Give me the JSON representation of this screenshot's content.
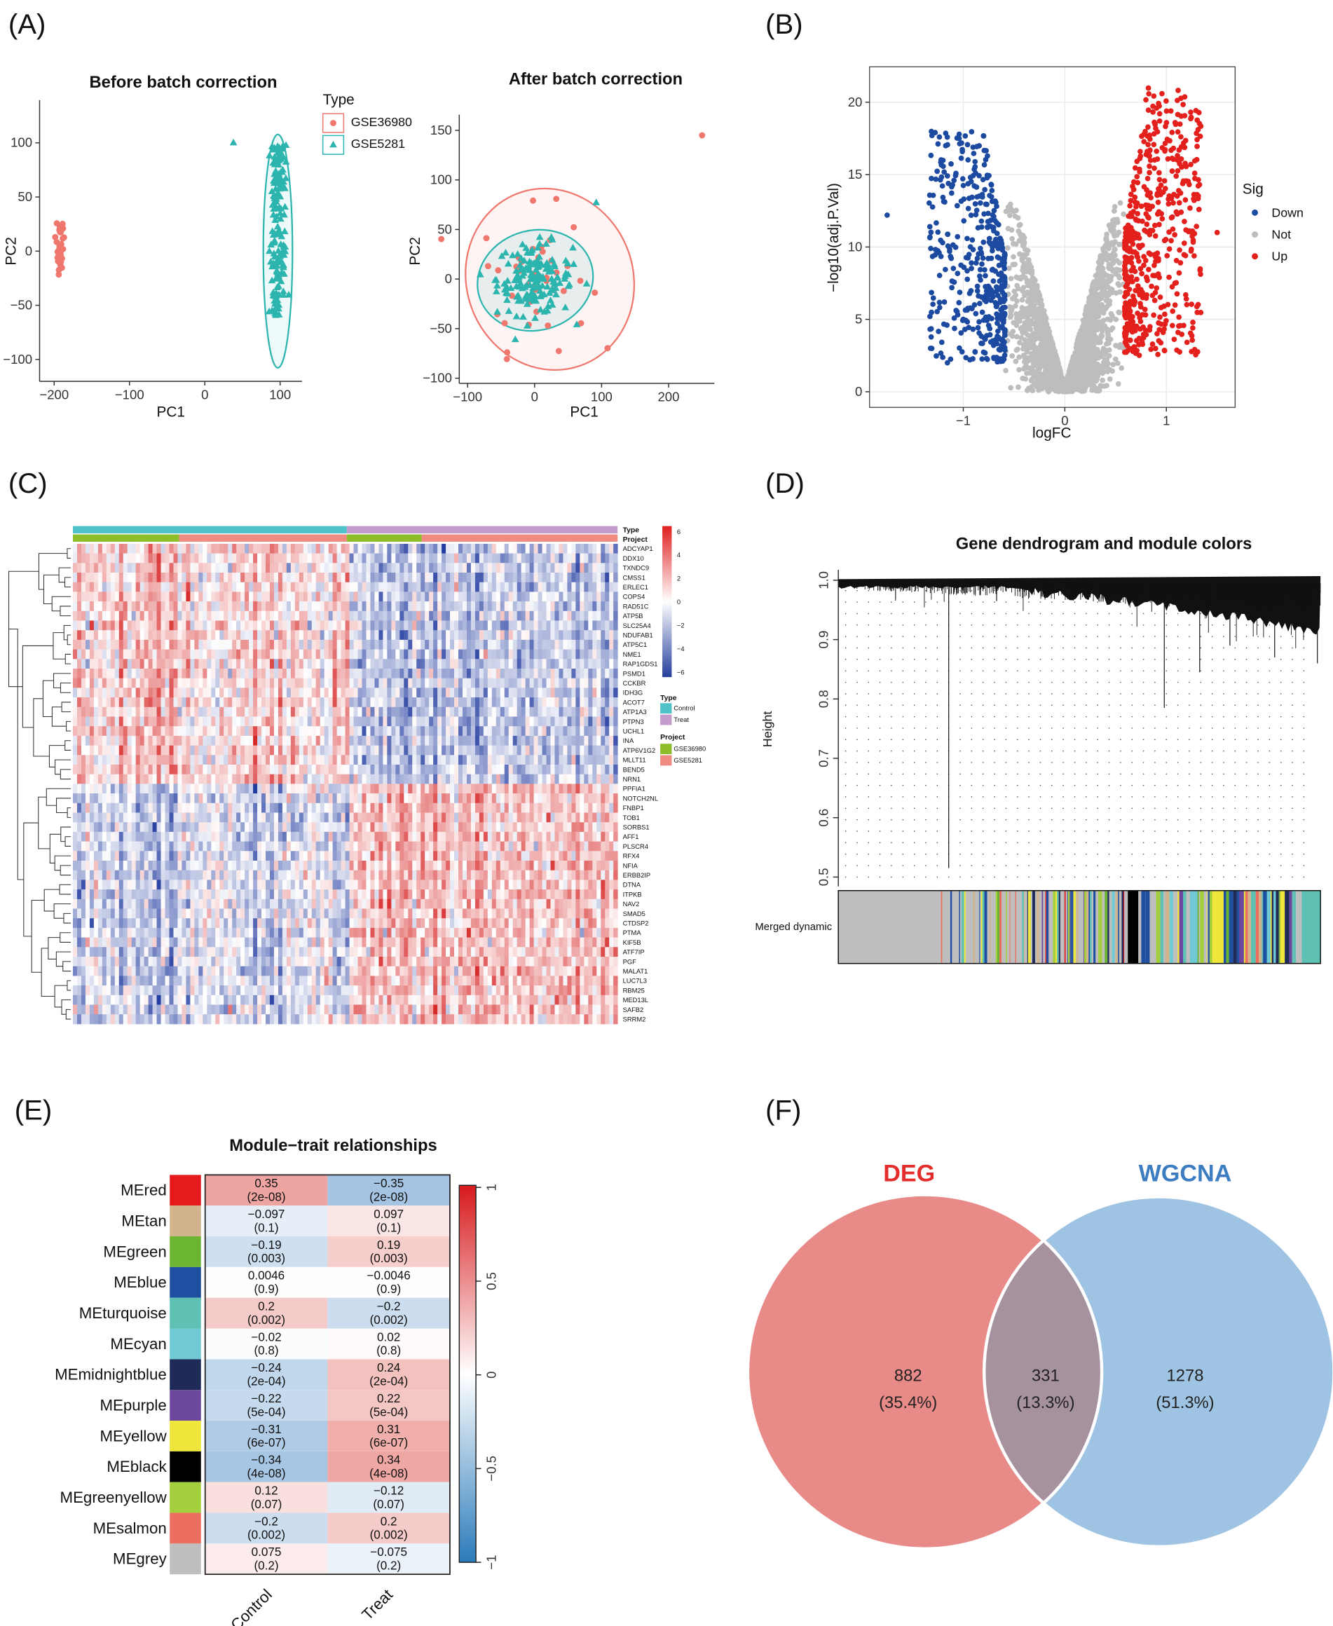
{
  "panel_labels": {
    "a": "(A)",
    "b": "(B)",
    "c": "(C)",
    "d": "(D)",
    "e": "(E)",
    "f": "(F)"
  },
  "chart_data": [
    {
      "id": "pca-before",
      "type": "scatter",
      "title": "Before batch correction",
      "xlabel": "PC1",
      "ylabel": "PC2",
      "xticks": [
        -200,
        -100,
        0,
        100
      ],
      "yticks": [
        100,
        50,
        0,
        -50,
        -100
      ],
      "xlim": [
        -217,
        122
      ],
      "ylim": [
        -118,
        122
      ],
      "legend": {
        "title": "Type",
        "position": "right",
        "entries": [
          "GSE36980",
          "GSE5281"
        ]
      },
      "series_colors": {
        "GSE36980": "#ef776d",
        "GSE5281": "#2bb5ae"
      },
      "clusters": {
        "GSE36980": {
          "pc1_center": -190,
          "pc2_range": [
            -25,
            55
          ]
        },
        "GSE5281": {
          "pc1_center": 97,
          "pc2_range": [
            -65,
            100
          ]
        }
      }
    },
    {
      "id": "pca-after",
      "type": "scatter",
      "title": "After batch correction",
      "xlabel": "PC1",
      "ylabel": "PC2",
      "xticks": [
        -100,
        0,
        100,
        200
      ],
      "yticks": [
        150,
        100,
        50,
        0,
        -50,
        -100
      ],
      "xlim": [
        -114,
        270
      ],
      "ylim": [
        -105,
        160
      ],
      "outliers": [
        {
          "series": "GSE36980",
          "x": 250,
          "y": 145
        },
        {
          "series": "GSE5281",
          "x": 92,
          "y": 77
        }
      ]
    },
    {
      "id": "volcano",
      "type": "scatter",
      "xlabel": "logFC",
      "ylabel": "−log10(adj.P.Val)",
      "xticks": [
        -1,
        0,
        1
      ],
      "yticks": [
        0,
        5,
        10,
        15,
        20
      ],
      "xlim": [
        -1.92,
        1.68
      ],
      "ylim": [
        -0.8,
        22.5
      ],
      "legend": {
        "title": "Sig",
        "position": "right",
        "entries": [
          "Down",
          "Not",
          "Up"
        ]
      },
      "series_colors": {
        "Down": "#1c4aa0",
        "Not": "#bdbdbd",
        "Up": "#e3201c"
      },
      "logfc_threshold": 0.585
    },
    {
      "id": "heatmap",
      "type": "heatmap",
      "annotations": [
        "Type",
        "Project"
      ],
      "genes": [
        "ADCYAP1",
        "DDX10",
        "TXNDC9",
        "CMSS1",
        "ERLEC1",
        "COPS4",
        "RAD51C",
        "ATP5B",
        "SLC25A4",
        "NDUFAB1",
        "ATP5C1",
        "NME1",
        "RAP1GDS1",
        "PSMD1",
        "CCKBR",
        "IDH3G",
        "ACOT7",
        "ATP1A3",
        "PTPN3",
        "UCHL1",
        "INA",
        "ATP6V1G2",
        "MLLT11",
        "BEND5",
        "NRN1",
        "PPFIA1",
        "NOTCH2NL",
        "FNBP1",
        "TOB1",
        "SORBS1",
        "AFF1",
        "PLSCR4",
        "RFX4",
        "NFIA",
        "ERBB2IP",
        "DTNA",
        "ITPKB",
        "NAV2",
        "SMAD5",
        "CTDSP2",
        "PTMA",
        "KIF5B",
        "ATF7IP",
        "PGF",
        "MALAT1",
        "LUC7L3",
        "RBM25",
        "MED13L",
        "SAFB2",
        "SRRM2"
      ],
      "colorbar_ticks": [
        6,
        4,
        2,
        0,
        -2,
        -4,
        -6
      ],
      "legend": {
        "type_title": "Type",
        "type_entries": [
          {
            "label": "Control",
            "color": "#4fc1c8"
          },
          {
            "label": "Treat",
            "color": "#c49ccb"
          }
        ],
        "project_title": "Project",
        "project_entries": [
          {
            "label": "GSE36980",
            "color": "#8dbd28"
          },
          {
            "label": "GSE5281",
            "color": "#f08b82"
          }
        ]
      }
    },
    {
      "id": "dendrogram",
      "type": "other",
      "title": "Gene dendrogram and module colors",
      "ylabel": "Height",
      "yticks": [
        1.0,
        0.9,
        0.8,
        0.7,
        0.6,
        0.5
      ],
      "ylim": [
        0.49,
        1.01
      ],
      "strip_label": "Merged dynamic"
    },
    {
      "id": "module-trait",
      "type": "heatmap",
      "title": "Module−trait relationships",
      "columns": [
        "Control",
        "Treat"
      ],
      "colorbar_ticks": [
        1,
        0.5,
        0,
        -0.5,
        -1
      ],
      "rows": [
        {
          "module": "MEred",
          "color": "#e41a1c",
          "values": [
            "0.35",
            "-0.35"
          ],
          "p": [
            "(2e-08)",
            "(2e-08)"
          ]
        },
        {
          "module": "MEtan",
          "color": "#d2b48c",
          "values": [
            "-0.097",
            "0.097"
          ],
          "p": [
            "(0.1)",
            "(0.1)"
          ]
        },
        {
          "module": "MEgreen",
          "color": "#6cb533",
          "values": [
            "-0.19",
            "0.19"
          ],
          "p": [
            "(0.003)",
            "(0.003)"
          ]
        },
        {
          "module": "MEblue",
          "color": "#1f4fa0",
          "values": [
            "0.0046",
            "-0.0046"
          ],
          "p": [
            "(0.9)",
            "(0.9)"
          ]
        },
        {
          "module": "MEturquoise",
          "color": "#5ec1b4",
          "values": [
            "0.2",
            "-0.2"
          ],
          "p": [
            "(0.002)",
            "(0.002)"
          ]
        },
        {
          "module": "MEcyan",
          "color": "#6fcad6",
          "values": [
            "-0.02",
            "0.02"
          ],
          "p": [
            "(0.8)",
            "(0.8)"
          ]
        },
        {
          "module": "MEmidnightblue",
          "color": "#1e2a57",
          "values": [
            "-0.24",
            "0.24"
          ],
          "p": [
            "(2e-04)",
            "(2e-04)"
          ]
        },
        {
          "module": "MEpurple",
          "color": "#6b489e",
          "values": [
            "-0.22",
            "0.22"
          ],
          "p": [
            "(5e-04)",
            "(5e-04)"
          ]
        },
        {
          "module": "MEyellow",
          "color": "#f0e53a",
          "values": [
            "-0.31",
            "0.31"
          ],
          "p": [
            "(6e-07)",
            "(6e-07)"
          ]
        },
        {
          "module": "MEblack",
          "color": "#000000",
          "values": [
            "-0.34",
            "0.34"
          ],
          "p": [
            "(4e-08)",
            "(4e-08)"
          ]
        },
        {
          "module": "MEgreenyellow",
          "color": "#a4cf3c",
          "values": [
            "0.12",
            "-0.12"
          ],
          "p": [
            "(0.07)",
            "(0.07)"
          ]
        },
        {
          "module": "MEsalmon",
          "color": "#ec6e5e",
          "values": [
            "-0.2",
            "0.2"
          ],
          "p": [
            "(0.002)",
            "(0.002)"
          ]
        },
        {
          "module": "MEgrey",
          "color": "#bebebe",
          "values": [
            "0.075",
            "-0.075"
          ],
          "p": [
            "(0.2)",
            "(0.2)"
          ]
        }
      ]
    },
    {
      "id": "venn",
      "type": "other",
      "sets": [
        {
          "name": "DEG",
          "color": "#e32d2a",
          "fill": "#e88a88"
        },
        {
          "name": "WGCNA",
          "color": "#3c7cc0",
          "fill": "#9fc3e2"
        }
      ],
      "regions": [
        {
          "label": "882",
          "percent": "(35.4%)"
        },
        {
          "label": "331",
          "percent": "(13.3%)"
        },
        {
          "label": "1278",
          "percent": "(51.3%)"
        }
      ],
      "intersection_fill": "#a6929f"
    }
  ]
}
